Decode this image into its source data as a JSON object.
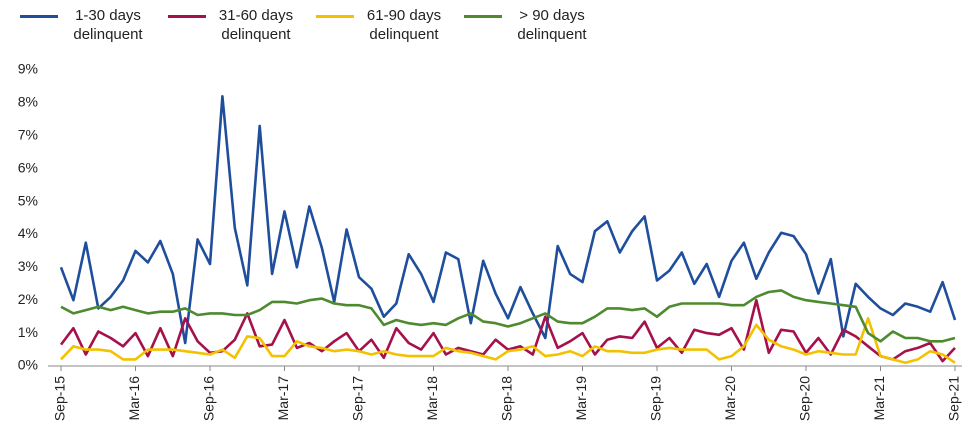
{
  "chart_data": {
    "type": "line",
    "categories": [
      "Sep-15",
      null,
      null,
      null,
      null,
      null,
      "Mar-16",
      null,
      null,
      null,
      null,
      null,
      "Sep-16",
      null,
      null,
      null,
      null,
      null,
      "Mar-17",
      null,
      null,
      null,
      null,
      null,
      "Sep-17",
      null,
      null,
      null,
      null,
      null,
      "Mar-18",
      null,
      null,
      null,
      null,
      null,
      "Sep-18",
      null,
      null,
      null,
      null,
      null,
      "Mar-19",
      null,
      null,
      null,
      null,
      null,
      "Sep-19",
      null,
      null,
      null,
      null,
      null,
      "Mar-20",
      null,
      null,
      null,
      null,
      null,
      "Sep-20",
      null,
      null,
      null,
      null,
      null,
      "Mar-21",
      null,
      null,
      null,
      null,
      null,
      "Sep-21"
    ],
    "series": [
      {
        "name": "1-30 days delinquent",
        "color": "#1f4e9c",
        "values": [
          3.0,
          2.0,
          3.75,
          1.75,
          2.1,
          2.6,
          3.5,
          3.15,
          3.8,
          2.8,
          0.7,
          3.85,
          3.1,
          8.2,
          4.2,
          2.45,
          7.3,
          2.8,
          4.7,
          3.0,
          4.85,
          3.6,
          1.95,
          4.15,
          2.7,
          2.35,
          1.5,
          1.9,
          3.4,
          2.8,
          1.95,
          3.45,
          3.25,
          1.3,
          3.2,
          2.2,
          1.45,
          2.4,
          1.6,
          0.85,
          3.65,
          2.8,
          2.55,
          4.1,
          4.4,
          3.45,
          4.1,
          4.55,
          2.6,
          2.9,
          3.45,
          2.5,
          3.1,
          2.1,
          3.2,
          3.75,
          2.65,
          3.45,
          4.05,
          3.95,
          3.4,
          2.2,
          3.25,
          0.9,
          2.5,
          2.1,
          1.75,
          1.55,
          1.9,
          1.8,
          1.65,
          2.55,
          1.4
        ]
      },
      {
        "name": "31-60 days delinquent",
        "color": "#a5114a",
        "values": [
          0.65,
          1.15,
          0.35,
          1.05,
          0.85,
          0.6,
          1.0,
          0.3,
          1.15,
          0.3,
          1.45,
          0.75,
          0.4,
          0.45,
          0.8,
          1.6,
          0.6,
          0.65,
          1.4,
          0.55,
          0.7,
          0.45,
          0.75,
          1.0,
          0.45,
          0.8,
          0.25,
          1.15,
          0.7,
          0.5,
          1.0,
          0.35,
          0.55,
          0.45,
          0.35,
          0.8,
          0.5,
          0.6,
          0.35,
          1.5,
          0.55,
          0.75,
          1.0,
          0.35,
          0.8,
          0.9,
          0.85,
          1.35,
          0.55,
          0.85,
          0.4,
          1.1,
          1.0,
          0.95,
          1.15,
          0.5,
          2.0,
          0.4,
          1.1,
          1.05,
          0.4,
          0.85,
          0.35,
          1.1,
          0.9,
          0.6,
          0.3,
          0.2,
          0.45,
          0.55,
          0.7,
          0.15,
          0.55
        ]
      },
      {
        "name": "61-90 days delinquent",
        "color": "#f2c200",
        "values": [
          0.2,
          0.6,
          0.5,
          0.5,
          0.45,
          0.2,
          0.2,
          0.5,
          0.5,
          0.5,
          0.45,
          0.4,
          0.35,
          0.5,
          0.25,
          0.9,
          0.85,
          0.3,
          0.3,
          0.75,
          0.6,
          0.55,
          0.45,
          0.5,
          0.45,
          0.35,
          0.45,
          0.35,
          0.3,
          0.3,
          0.3,
          0.55,
          0.45,
          0.4,
          0.3,
          0.2,
          0.45,
          0.5,
          0.6,
          0.3,
          0.35,
          0.45,
          0.3,
          0.6,
          0.45,
          0.45,
          0.4,
          0.4,
          0.5,
          0.55,
          0.5,
          0.5,
          0.5,
          0.2,
          0.3,
          0.6,
          1.25,
          0.8,
          0.6,
          0.5,
          0.35,
          0.45,
          0.4,
          0.35,
          0.35,
          1.45,
          0.3,
          0.2,
          0.1,
          0.2,
          0.45,
          0.35,
          0.1
        ]
      },
      {
        "name": "> 90 days delinquent",
        "color": "#4e8a2e",
        "values": [
          1.8,
          1.6,
          1.7,
          1.8,
          1.7,
          1.8,
          1.7,
          1.6,
          1.65,
          1.65,
          1.75,
          1.55,
          1.6,
          1.6,
          1.55,
          1.55,
          1.7,
          1.95,
          1.95,
          1.9,
          2.0,
          2.05,
          1.9,
          1.85,
          1.85,
          1.75,
          1.25,
          1.4,
          1.3,
          1.25,
          1.3,
          1.25,
          1.45,
          1.6,
          1.35,
          1.3,
          1.2,
          1.3,
          1.45,
          1.6,
          1.35,
          1.3,
          1.3,
          1.5,
          1.75,
          1.75,
          1.7,
          1.75,
          1.5,
          1.8,
          1.9,
          1.9,
          1.9,
          1.9,
          1.85,
          1.85,
          2.1,
          2.25,
          2.3,
          2.1,
          2.0,
          1.95,
          1.9,
          1.85,
          1.8,
          1.0,
          0.75,
          1.05,
          0.85,
          0.85,
          0.75,
          0.75,
          0.85
        ]
      }
    ],
    "ylim": [
      0,
      9
    ],
    "yticks": [
      {
        "value": 0,
        "label": "0%"
      },
      {
        "value": 1,
        "label": "1%"
      },
      {
        "value": 2,
        "label": "2%"
      },
      {
        "value": 3,
        "label": "3%"
      },
      {
        "value": 4,
        "label": "4%"
      },
      {
        "value": 5,
        "label": "5%"
      },
      {
        "value": 6,
        "label": "6%"
      },
      {
        "value": 7,
        "label": "7%"
      },
      {
        "value": 8,
        "label": "8%"
      },
      {
        "value": 9,
        "label": "9%"
      }
    ],
    "grid": false,
    "legend": "top"
  }
}
